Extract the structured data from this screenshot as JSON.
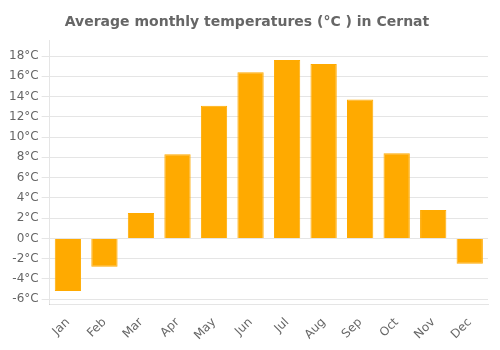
{
  "chart_data": {
    "type": "bar",
    "title": "Average monthly temperatures (°C ) in Cernat",
    "categories": [
      "Jan",
      "Feb",
      "Mar",
      "Apr",
      "May",
      "Jun",
      "Jul",
      "Aug",
      "Sep",
      "Oct",
      "Nov",
      "Dec"
    ],
    "values": [
      -5.2,
      -2.8,
      2.5,
      8.3,
      13.1,
      16.4,
      17.6,
      17.2,
      13.7,
      8.4,
      2.8,
      -2.5
    ],
    "color": "#FFAA00",
    "ylim": [
      -6.5,
      19.5
    ],
    "yticks": [
      {
        "value": -6,
        "label": "-6°C"
      },
      {
        "value": -4,
        "label": "-4°C"
      },
      {
        "value": -2,
        "label": "-2°C"
      },
      {
        "value": 0,
        "label": "0°C"
      },
      {
        "value": 2,
        "label": "2°C"
      },
      {
        "value": 4,
        "label": "4°C"
      },
      {
        "value": 6,
        "label": "6°C"
      },
      {
        "value": 8,
        "label": "8°C"
      },
      {
        "value": 10,
        "label": "10°C"
      },
      {
        "value": 12,
        "label": "12°C"
      },
      {
        "value": 14,
        "label": "14°C"
      },
      {
        "value": 16,
        "label": "16°C"
      },
      {
        "value": 18,
        "label": "18°C"
      }
    ],
    "grid": true
  }
}
